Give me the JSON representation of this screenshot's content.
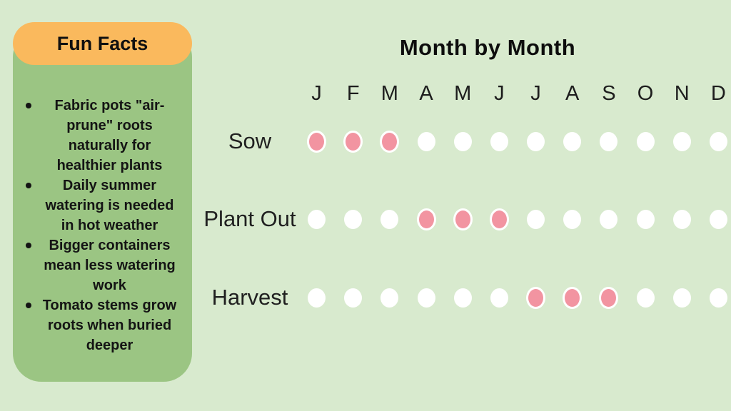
{
  "page": {
    "background_color": "#D8EACE"
  },
  "fun_facts": {
    "title": "Fun Facts",
    "header_color": "#FAB95D",
    "panel_color": "#9BC583",
    "items": [
      "Fabric pots \"air-prune\" roots naturally for healthier plants",
      "Daily summer watering is needed in hot weather",
      "Bigger containers mean less watering work",
      "Tomato stems grow roots when buried deeper"
    ]
  },
  "calendar": {
    "title": "Month by Month",
    "months": [
      "J",
      "F",
      "M",
      "A",
      "M",
      "J",
      "J",
      "A",
      "S",
      "O",
      "N",
      "D"
    ],
    "dot_active_color": "#F294A1",
    "dot_inactive_color": "#FFFFFF",
    "rows": [
      {
        "label": "Sow",
        "active_indices": [
          0,
          1,
          2
        ]
      },
      {
        "label": "Plant Out",
        "active_indices": [
          3,
          4,
          5
        ]
      },
      {
        "label": "Harvest",
        "active_indices": [
          6,
          7,
          8
        ]
      }
    ]
  },
  "chart_data": {
    "type": "heatmap",
    "title": "Month by Month",
    "x_labels": [
      "J",
      "F",
      "M",
      "A",
      "M",
      "J",
      "J",
      "A",
      "S",
      "O",
      "N",
      "D"
    ],
    "y_labels": [
      "Sow",
      "Plant Out",
      "Harvest"
    ],
    "values": [
      [
        1,
        1,
        1,
        0,
        0,
        0,
        0,
        0,
        0,
        0,
        0,
        0
      ],
      [
        0,
        0,
        0,
        1,
        1,
        1,
        0,
        0,
        0,
        0,
        0,
        0
      ],
      [
        0,
        0,
        0,
        0,
        0,
        0,
        1,
        1,
        1,
        0,
        0,
        0
      ]
    ],
    "value_meaning": "1 = active month shown as pink dot, 0 = inactive month shown as white dot",
    "active_color": "#F294A1",
    "inactive_color": "#FFFFFF",
    "legend_position": "none",
    "grid": false
  }
}
